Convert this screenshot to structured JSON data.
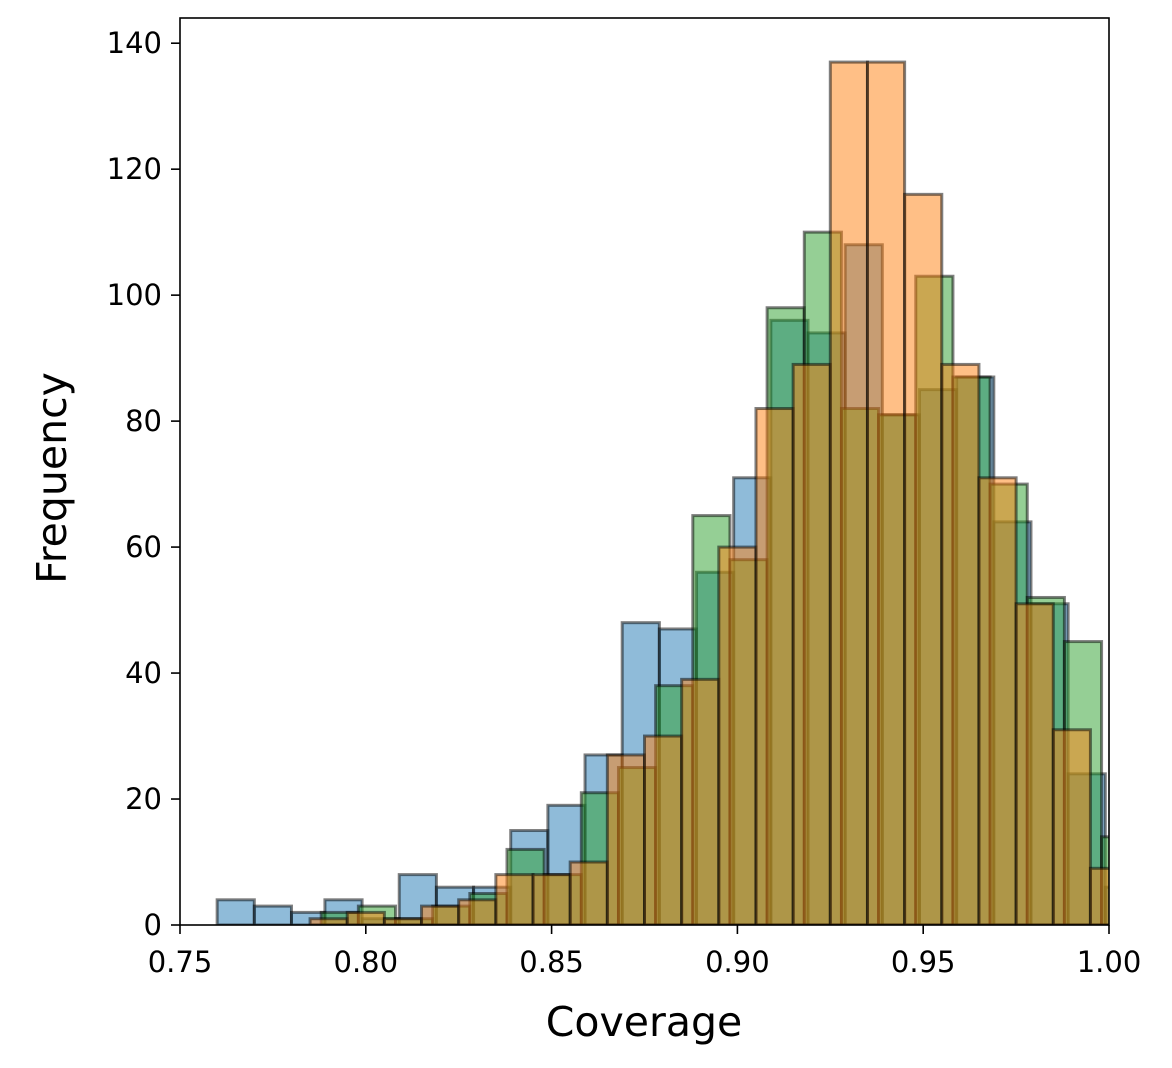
{
  "chart_data": {
    "type": "bar",
    "subtype": "overlaid-histogram",
    "title": "",
    "xlabel": "Coverage",
    "ylabel": "Frequency",
    "xlim": [
      0.75,
      1.0
    ],
    "ylim": [
      0,
      144
    ],
    "xticks": [
      0.75,
      0.8,
      0.85,
      0.9,
      0.95,
      1.0
    ],
    "xtick_labels": [
      "0.75",
      "0.80",
      "0.85",
      "0.90",
      "0.95",
      "1.00"
    ],
    "yticks": [
      0,
      20,
      40,
      60,
      80,
      100,
      120,
      140
    ],
    "ytick_labels": [
      "0",
      "20",
      "40",
      "60",
      "80",
      "100",
      "120",
      "140"
    ],
    "grid": false,
    "legend": "none",
    "bar_alpha": 0.5,
    "edge_color": "#000000",
    "series": [
      {
        "color": "#1f77b4",
        "bins": [
          {
            "x0": 0.75,
            "x1": 0.76,
            "count": 0
          },
          {
            "x0": 0.76,
            "x1": 0.77,
            "count": 4
          },
          {
            "x0": 0.77,
            "x1": 0.78,
            "count": 3
          },
          {
            "x0": 0.78,
            "x1": 0.789,
            "count": 2
          },
          {
            "x0": 0.789,
            "x1": 0.799,
            "count": 4
          },
          {
            "x0": 0.799,
            "x1": 0.809,
            "count": 1
          },
          {
            "x0": 0.809,
            "x1": 0.819,
            "count": 8
          },
          {
            "x0": 0.819,
            "x1": 0.829,
            "count": 6
          },
          {
            "x0": 0.829,
            "x1": 0.839,
            "count": 6
          },
          {
            "x0": 0.839,
            "x1": 0.849,
            "count": 15
          },
          {
            "x0": 0.849,
            "x1": 0.859,
            "count": 19
          },
          {
            "x0": 0.859,
            "x1": 0.869,
            "count": 27
          },
          {
            "x0": 0.869,
            "x1": 0.879,
            "count": 48
          },
          {
            "x0": 0.879,
            "x1": 0.889,
            "count": 47
          },
          {
            "x0": 0.889,
            "x1": 0.899,
            "count": 56
          },
          {
            "x0": 0.899,
            "x1": 0.909,
            "count": 71
          },
          {
            "x0": 0.909,
            "x1": 0.919,
            "count": 96
          },
          {
            "x0": 0.919,
            "x1": 0.929,
            "count": 94
          },
          {
            "x0": 0.929,
            "x1": 0.939,
            "count": 108
          },
          {
            "x0": 0.939,
            "x1": 0.949,
            "count": 81
          },
          {
            "x0": 0.949,
            "x1": 0.959,
            "count": 85
          },
          {
            "x0": 0.959,
            "x1": 0.969,
            "count": 87
          },
          {
            "x0": 0.969,
            "x1": 0.979,
            "count": 64
          },
          {
            "x0": 0.979,
            "x1": 0.989,
            "count": 51
          },
          {
            "x0": 0.989,
            "x1": 0.999,
            "count": 24
          },
          {
            "x0": 0.999,
            "x1": 1.009,
            "count": 6
          }
        ]
      },
      {
        "color": "#2ca02c",
        "bins": [
          {
            "x0": 0.788,
            "x1": 0.798,
            "count": 2
          },
          {
            "x0": 0.798,
            "x1": 0.808,
            "count": 3
          },
          {
            "x0": 0.808,
            "x1": 0.818,
            "count": 1
          },
          {
            "x0": 0.818,
            "x1": 0.828,
            "count": 3
          },
          {
            "x0": 0.828,
            "x1": 0.838,
            "count": 5
          },
          {
            "x0": 0.838,
            "x1": 0.848,
            "count": 12
          },
          {
            "x0": 0.848,
            "x1": 0.858,
            "count": 8
          },
          {
            "x0": 0.858,
            "x1": 0.868,
            "count": 21
          },
          {
            "x0": 0.868,
            "x1": 0.878,
            "count": 25
          },
          {
            "x0": 0.878,
            "x1": 0.888,
            "count": 38
          },
          {
            "x0": 0.888,
            "x1": 0.898,
            "count": 65
          },
          {
            "x0": 0.898,
            "x1": 0.908,
            "count": 58
          },
          {
            "x0": 0.908,
            "x1": 0.918,
            "count": 98
          },
          {
            "x0": 0.918,
            "x1": 0.928,
            "count": 110
          },
          {
            "x0": 0.928,
            "x1": 0.938,
            "count": 82
          },
          {
            "x0": 0.938,
            "x1": 0.948,
            "count": 81
          },
          {
            "x0": 0.948,
            "x1": 0.958,
            "count": 103
          },
          {
            "x0": 0.958,
            "x1": 0.968,
            "count": 87
          },
          {
            "x0": 0.968,
            "x1": 0.978,
            "count": 70
          },
          {
            "x0": 0.978,
            "x1": 0.988,
            "count": 52
          },
          {
            "x0": 0.988,
            "x1": 0.998,
            "count": 45
          },
          {
            "x0": 0.998,
            "x1": 1.008,
            "count": 14
          }
        ]
      },
      {
        "color": "#ff7f0e",
        "bins": [
          {
            "x0": 0.785,
            "x1": 0.795,
            "count": 1
          },
          {
            "x0": 0.795,
            "x1": 0.805,
            "count": 2
          },
          {
            "x0": 0.805,
            "x1": 0.815,
            "count": 1
          },
          {
            "x0": 0.815,
            "x1": 0.825,
            "count": 3
          },
          {
            "x0": 0.825,
            "x1": 0.835,
            "count": 4
          },
          {
            "x0": 0.835,
            "x1": 0.845,
            "count": 8
          },
          {
            "x0": 0.845,
            "x1": 0.855,
            "count": 8
          },
          {
            "x0": 0.855,
            "x1": 0.865,
            "count": 10
          },
          {
            "x0": 0.865,
            "x1": 0.875,
            "count": 27
          },
          {
            "x0": 0.875,
            "x1": 0.885,
            "count": 30
          },
          {
            "x0": 0.885,
            "x1": 0.895,
            "count": 39
          },
          {
            "x0": 0.895,
            "x1": 0.905,
            "count": 60
          },
          {
            "x0": 0.905,
            "x1": 0.915,
            "count": 82
          },
          {
            "x0": 0.915,
            "x1": 0.925,
            "count": 89
          },
          {
            "x0": 0.925,
            "x1": 0.935,
            "count": 137
          },
          {
            "x0": 0.935,
            "x1": 0.945,
            "count": 137
          },
          {
            "x0": 0.945,
            "x1": 0.955,
            "count": 116
          },
          {
            "x0": 0.955,
            "x1": 0.965,
            "count": 89
          },
          {
            "x0": 0.965,
            "x1": 0.975,
            "count": 71
          },
          {
            "x0": 0.975,
            "x1": 0.985,
            "count": 51
          },
          {
            "x0": 0.985,
            "x1": 0.995,
            "count": 31
          },
          {
            "x0": 0.995,
            "x1": 1.005,
            "count": 9
          }
        ]
      }
    ]
  }
}
